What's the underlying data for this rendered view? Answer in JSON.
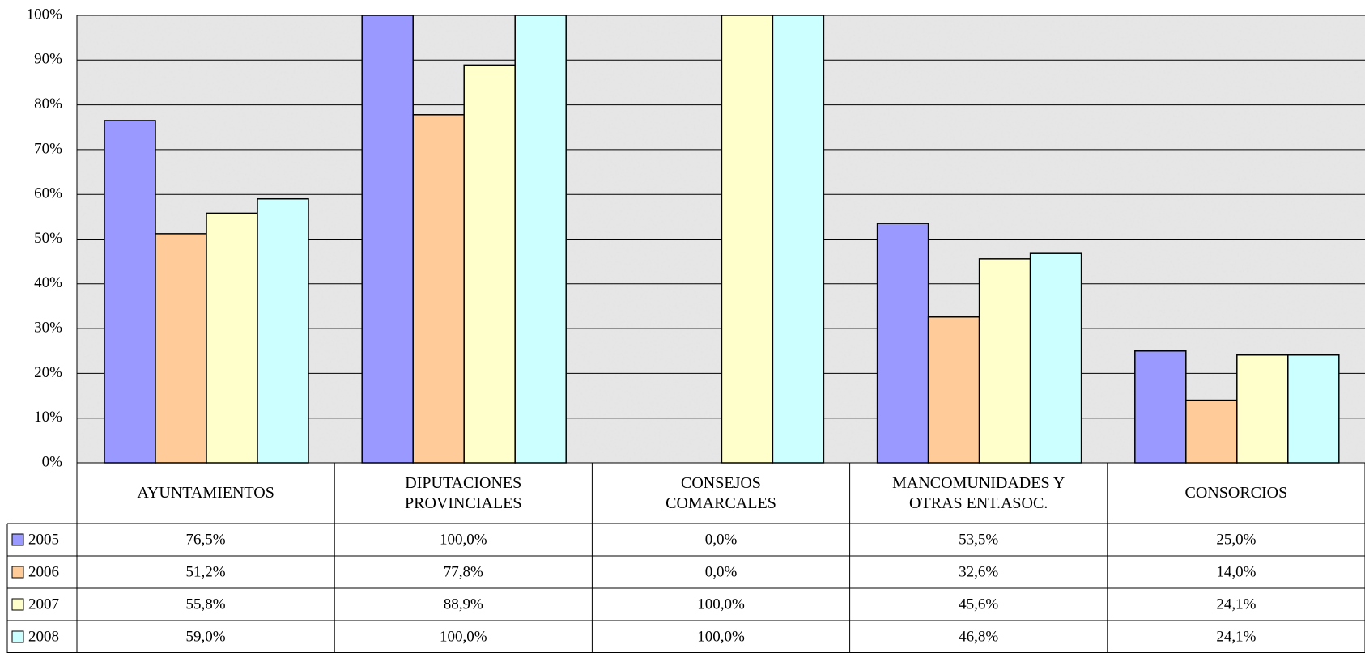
{
  "chart_data": {
    "type": "bar",
    "categories": [
      "AYUNTAMIENTOS",
      "DIPUTACIONES PROVINCIALES",
      "CONSEJOS COMARCALES",
      "MANCOMUNIDADES Y OTRAS ENT.ASOC.",
      "CONSORCIOS"
    ],
    "series": [
      {
        "name": "2005",
        "color": "#9999ff",
        "values": [
          76.5,
          100,
          0,
          53.5,
          25
        ],
        "value_labels": [
          "76,5%",
          "100,0%",
          "0,0%",
          "53,5%",
          "25,0%"
        ]
      },
      {
        "name": "2006",
        "color": "#ffcc99",
        "values": [
          51.2,
          77.8,
          0,
          32.6,
          14
        ],
        "value_labels": [
          "51,2%",
          "77,8%",
          "0,0%",
          "32,6%",
          "14,0%"
        ]
      },
      {
        "name": "2007",
        "color": "#ffffcc",
        "values": [
          55.8,
          88.9,
          100,
          45.6,
          24.1
        ],
        "value_labels": [
          "55,8%",
          "88,9%",
          "100,0%",
          "45,6%",
          "24,1%"
        ]
      },
      {
        "name": "2008",
        "color": "#ccffff",
        "values": [
          59,
          100,
          100,
          46.8,
          24.1
        ],
        "value_labels": [
          "59,0%",
          "100,0%",
          "100,0%",
          "46,8%",
          "24,1%"
        ]
      }
    ],
    "ylim": [
      0,
      100
    ],
    "yticks": [
      {
        "value": 0,
        "label": "0%"
      },
      {
        "value": 10,
        "label": "10%"
      },
      {
        "value": 20,
        "label": "20%"
      },
      {
        "value": 30,
        "label": "30%"
      },
      {
        "value": 40,
        "label": "40%"
      },
      {
        "value": 50,
        "label": "50%"
      },
      {
        "value": 60,
        "label": "60%"
      },
      {
        "value": 70,
        "label": "70%"
      },
      {
        "value": 80,
        "label": "80%"
      },
      {
        "value": 90,
        "label": "90%"
      },
      {
        "value": 100,
        "label": "100%"
      }
    ],
    "grid": true
  }
}
